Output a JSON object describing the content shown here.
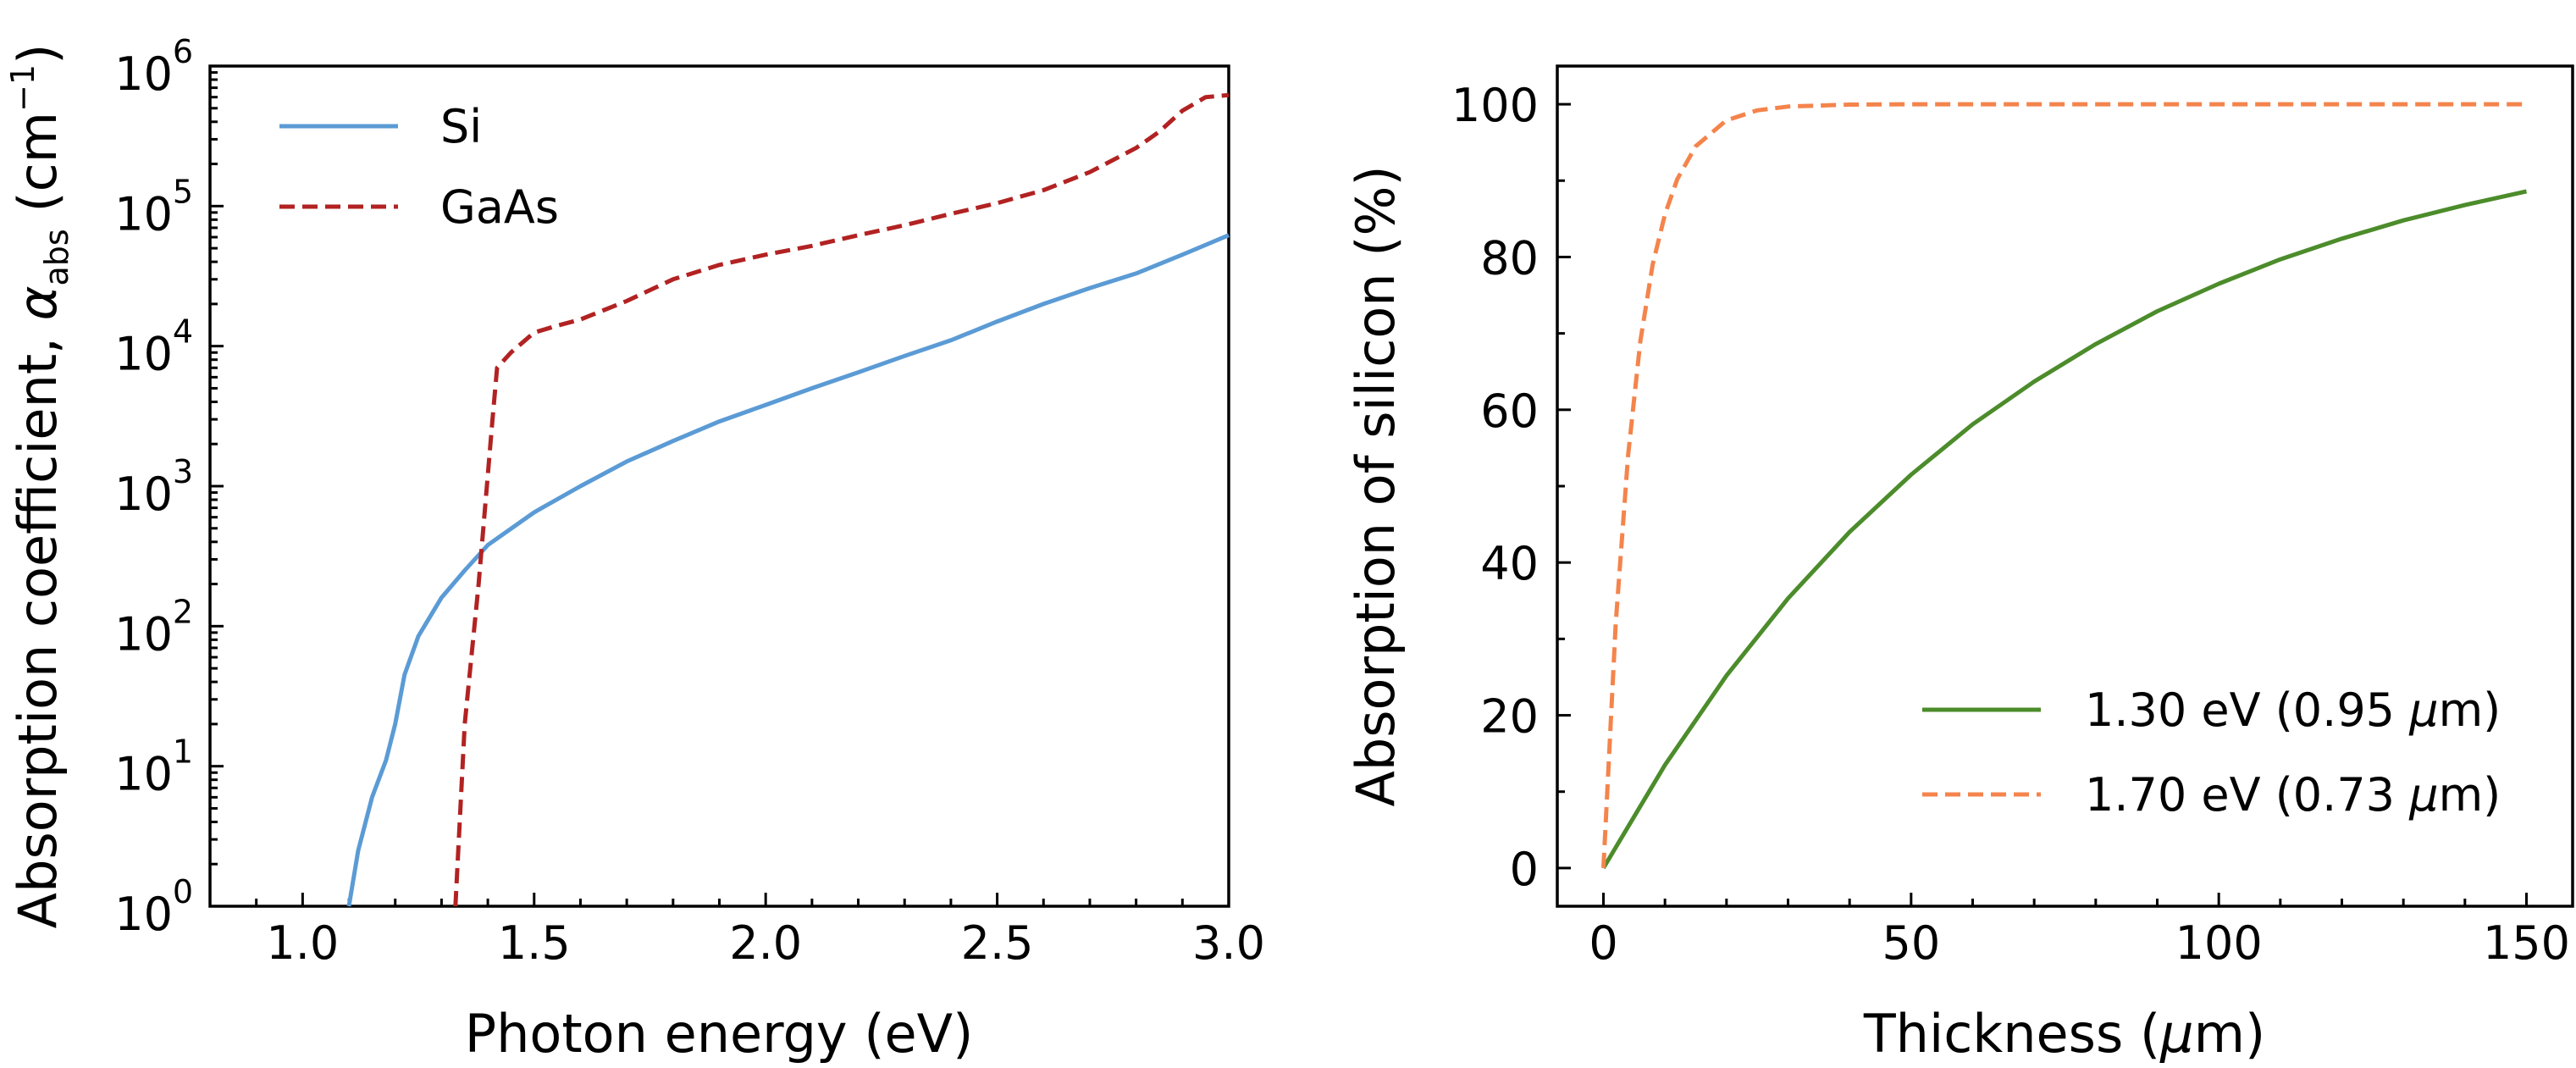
{
  "chart_data": [
    {
      "type": "line",
      "xlabel": "Photon energy (eV)",
      "ylabel_prefix": "Absorption coefficient, ",
      "ylabel_symbol": "α",
      "ylabel_subscript": "abs",
      "ylabel_unit_open": " (cm",
      "ylabel_unit_exp": "−1",
      "ylabel_unit_close": ")",
      "xlim": [
        0.8,
        3.0
      ],
      "ylim": [
        1,
        1000000
      ],
      "yscale": "log",
      "grid": false,
      "legend_position": "top-left",
      "x_ticks": [
        1.0,
        1.5,
        2.0,
        2.5,
        3.0
      ],
      "x_tick_labels": [
        "1.0",
        "1.5",
        "2.0",
        "2.5",
        "3.0"
      ],
      "y_ticks": [
        1,
        10,
        100,
        1000,
        10000,
        100000,
        1000000
      ],
      "y_tick_bases": [
        "10",
        "10",
        "10",
        "10",
        "10",
        "10",
        "10"
      ],
      "y_tick_exps": [
        "0",
        "1",
        "2",
        "3",
        "4",
        "5",
        "6"
      ],
      "series": [
        {
          "name": "Si",
          "color": "#5b9bd5",
          "dash": "solid",
          "x": [
            1.1,
            1.12,
            1.15,
            1.18,
            1.2,
            1.22,
            1.25,
            1.3,
            1.35,
            1.4,
            1.5,
            1.6,
            1.7,
            1.8,
            1.9,
            2.0,
            2.1,
            2.2,
            2.3,
            2.4,
            2.5,
            2.6,
            2.7,
            2.8,
            2.9,
            3.0
          ],
          "y": [
            1,
            2.5,
            6,
            11,
            20,
            45,
            85,
            160,
            250,
            380,
            650,
            1000,
            1500,
            2100,
            2900,
            3800,
            5000,
            6500,
            8500,
            11000,
            15000,
            20000,
            26000,
            33000,
            45000,
            62000
          ]
        },
        {
          "name": "GaAs",
          "color": "#b22222",
          "dash": "dashed",
          "x": [
            1.33,
            1.35,
            1.38,
            1.41,
            1.42,
            1.45,
            1.5,
            1.55,
            1.6,
            1.7,
            1.8,
            1.9,
            2.0,
            2.1,
            2.2,
            2.3,
            2.4,
            2.5,
            2.6,
            2.7,
            2.8,
            2.85,
            2.9,
            2.95,
            3.0
          ],
          "y": [
            1,
            20,
            200,
            3000,
            7000,
            9000,
            12500,
            14000,
            15500,
            21000,
            30000,
            38000,
            45000,
            52000,
            62000,
            73000,
            88000,
            105000,
            130000,
            175000,
            260000,
            340000,
            480000,
            600000,
            620000
          ]
        }
      ]
    },
    {
      "type": "line",
      "xlabel_prefix": "Thickness (",
      "xlabel_symbol": "μ",
      "xlabel_suffix": "m)",
      "ylabel": "Absorption of silicon (%)",
      "xlim": [
        -7.5,
        157.5
      ],
      "ylim": [
        -5,
        105
      ],
      "grid": false,
      "legend_position": "lower-right",
      "x_ticks": [
        0,
        50,
        100,
        150
      ],
      "x_tick_labels": [
        "0",
        "50",
        "100",
        "150"
      ],
      "y_ticks": [
        0,
        20,
        40,
        60,
        80,
        100
      ],
      "y_tick_labels": [
        "0",
        "20",
        "40",
        "60",
        "80",
        "100"
      ],
      "series": [
        {
          "name_prefix": "1.30 eV (0.95 ",
          "name_symbol": "μ",
          "name_suffix": "m)",
          "color": "#4c8c2b",
          "dash": "solid",
          "x": [
            0,
            10,
            20,
            30,
            40,
            50,
            60,
            70,
            80,
            90,
            100,
            110,
            120,
            130,
            140,
            150
          ],
          "y": [
            0,
            13.5,
            25.2,
            35.3,
            44.0,
            51.5,
            58.1,
            63.7,
            68.6,
            72.9,
            76.5,
            79.7,
            82.4,
            84.8,
            86.8,
            88.6
          ]
        },
        {
          "name_prefix": "1.70 eV (0.73 ",
          "name_symbol": "μ",
          "name_suffix": "m)",
          "color": "#f4844c",
          "dash": "dashed",
          "x": [
            0,
            2,
            4,
            6,
            8,
            10,
            12,
            15,
            20,
            25,
            30,
            40,
            50,
            75,
            100,
            125,
            150
          ],
          "y": [
            0,
            32,
            54,
            69,
            79,
            85.6,
            90.2,
            94.5,
            97.9,
            99.2,
            99.7,
            99.95,
            100,
            100,
            100,
            100,
            100
          ]
        }
      ]
    }
  ]
}
